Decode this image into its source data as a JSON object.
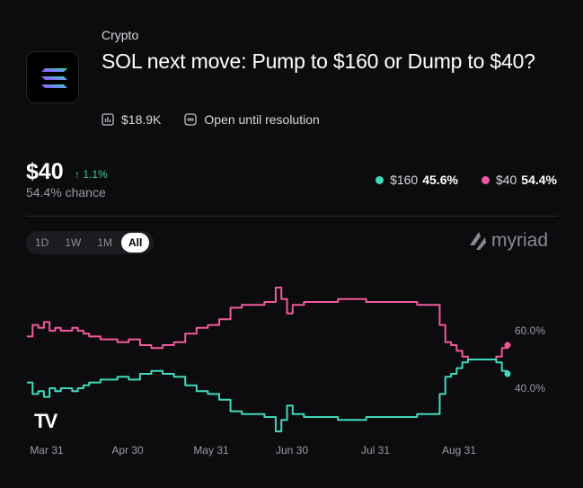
{
  "header": {
    "category": "Crypto",
    "title": "SOL next move: Pump to $160 or Dump to $40?",
    "volume": "$18.9K",
    "status": "Open until resolution",
    "logo_icon": "solana-logo-icon"
  },
  "price_block": {
    "price": "$40",
    "change": "1.1%",
    "chance": "54.4% chance",
    "change_color": "#3ecf8e"
  },
  "legend": [
    {
      "label": "$160",
      "value": "45.6%",
      "color": "#40d9bd"
    },
    {
      "label": "$40",
      "value": "54.4%",
      "color": "#f2589e"
    }
  ],
  "tabs": [
    {
      "label": "1D",
      "active": false
    },
    {
      "label": "1W",
      "active": false
    },
    {
      "label": "1M",
      "active": false
    },
    {
      "label": "All",
      "active": true
    }
  ],
  "brand": {
    "name": "myriad"
  },
  "chart_data": {
    "type": "line",
    "x_labels": [
      "Mar 31",
      "Apr 30",
      "May 31",
      "Jun 30",
      "Jul 31",
      "Aug 31"
    ],
    "y_ticks": [
      "60.0%",
      "40.0%"
    ],
    "y_tick_values": [
      60,
      40
    ],
    "ylim": [
      25,
      75
    ],
    "grid": false,
    "series": [
      {
        "name": "$40",
        "color": "#f2589e",
        "values": [
          [
            0,
            58
          ],
          [
            2,
            62
          ],
          [
            4,
            61
          ],
          [
            6,
            63
          ],
          [
            8,
            60
          ],
          [
            10,
            61
          ],
          [
            12,
            60
          ],
          [
            16,
            61
          ],
          [
            18,
            60
          ],
          [
            20,
            59
          ],
          [
            22,
            58
          ],
          [
            26,
            57
          ],
          [
            32,
            56
          ],
          [
            36,
            57
          ],
          [
            40,
            55
          ],
          [
            44,
            54
          ],
          [
            48,
            55
          ],
          [
            52,
            56
          ],
          [
            56,
            59
          ],
          [
            60,
            61
          ],
          [
            64,
            62
          ],
          [
            68,
            64
          ],
          [
            72,
            68
          ],
          [
            76,
            69
          ],
          [
            80,
            69
          ],
          [
            84,
            70
          ],
          [
            88,
            75
          ],
          [
            90,
            71
          ],
          [
            92,
            66
          ],
          [
            94,
            69
          ],
          [
            98,
            70
          ],
          [
            104,
            70
          ],
          [
            110,
            71
          ],
          [
            114,
            71
          ],
          [
            120,
            70
          ],
          [
            126,
            70
          ],
          [
            132,
            70
          ],
          [
            138,
            69
          ],
          [
            144,
            69
          ],
          [
            146,
            62
          ],
          [
            148,
            56
          ],
          [
            150,
            55
          ],
          [
            152,
            53
          ],
          [
            154,
            51
          ],
          [
            156,
            50
          ],
          [
            160,
            50
          ],
          [
            164,
            50
          ],
          [
            166,
            51
          ],
          [
            168,
            54
          ],
          [
            170,
            55
          ]
        ]
      },
      {
        "name": "$160",
        "color": "#40d9bd",
        "values": [
          [
            0,
            42
          ],
          [
            2,
            38
          ],
          [
            4,
            39
          ],
          [
            6,
            37
          ],
          [
            8,
            40
          ],
          [
            10,
            39
          ],
          [
            12,
            40
          ],
          [
            16,
            39
          ],
          [
            18,
            40
          ],
          [
            20,
            41
          ],
          [
            22,
            42
          ],
          [
            26,
            43
          ],
          [
            32,
            44
          ],
          [
            36,
            43
          ],
          [
            40,
            45
          ],
          [
            44,
            46
          ],
          [
            48,
            45
          ],
          [
            52,
            44
          ],
          [
            56,
            41
          ],
          [
            60,
            39
          ],
          [
            64,
            38
          ],
          [
            68,
            36
          ],
          [
            72,
            32
          ],
          [
            76,
            31
          ],
          [
            80,
            31
          ],
          [
            84,
            30
          ],
          [
            88,
            25
          ],
          [
            90,
            29
          ],
          [
            92,
            34
          ],
          [
            94,
            31
          ],
          [
            98,
            30
          ],
          [
            104,
            30
          ],
          [
            110,
            29
          ],
          [
            114,
            29
          ],
          [
            120,
            30
          ],
          [
            126,
            30
          ],
          [
            132,
            30
          ],
          [
            138,
            31
          ],
          [
            144,
            31
          ],
          [
            146,
            38
          ],
          [
            148,
            44
          ],
          [
            150,
            45
          ],
          [
            152,
            47
          ],
          [
            154,
            49
          ],
          [
            156,
            50
          ],
          [
            160,
            50
          ],
          [
            164,
            50
          ],
          [
            166,
            49
          ],
          [
            168,
            46
          ],
          [
            170,
            45
          ]
        ]
      }
    ],
    "x_domain": [
      0,
      170
    ]
  }
}
